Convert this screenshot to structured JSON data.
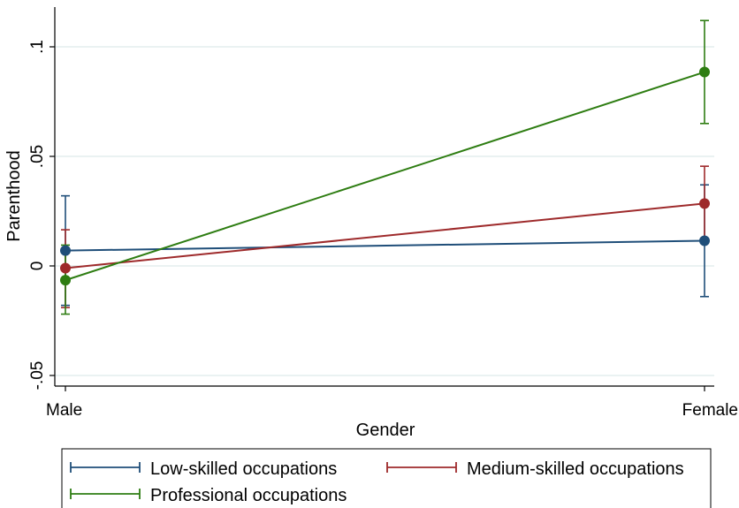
{
  "chart_data": {
    "type": "line",
    "xlabel": "Gender",
    "ylabel": "Parenthood",
    "categories": [
      "Male",
      "Female"
    ],
    "ylim": [
      -0.05,
      0.1
    ],
    "yticks": [
      -0.05,
      0,
      0.05,
      0.1
    ],
    "ytick_labels": [
      "-.05",
      "0",
      ".05",
      ".1"
    ],
    "grid": true,
    "error_bars": true,
    "legend_position": "bottom",
    "series": [
      {
        "name": "Low-skilled occupations",
        "color": "#1f4e79",
        "values": [
          0.007,
          0.0115
        ],
        "ci_low": [
          -0.018,
          -0.014
        ],
        "ci_high": [
          0.032,
          0.037
        ]
      },
      {
        "name": "Medium-skilled occupations",
        "color": "#9e2a2b",
        "values": [
          -0.001,
          0.0285
        ],
        "ci_low": [
          -0.019,
          0.011
        ],
        "ci_high": [
          0.0165,
          0.0455
        ]
      },
      {
        "name": "Professional occupations",
        "color": "#2e7d12",
        "values": [
          -0.0065,
          0.0885
        ],
        "ci_low": [
          -0.022,
          0.065
        ],
        "ci_high": [
          0.0095,
          0.112
        ]
      }
    ]
  }
}
